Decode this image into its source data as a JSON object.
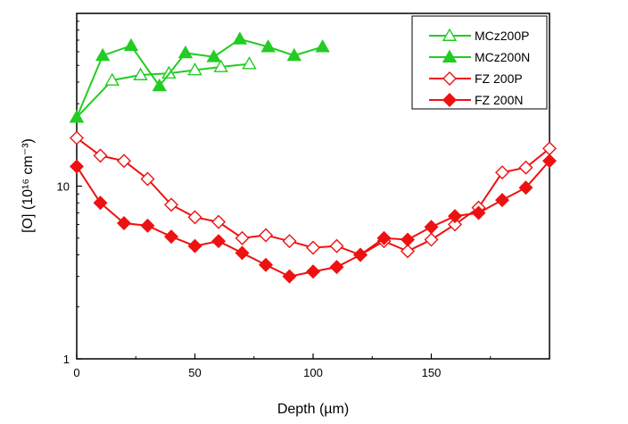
{
  "chart_data": {
    "type": "line",
    "title": "",
    "xlabel": "Depth (µm)",
    "ylabel": "[O] (10¹⁶ cm⁻³)",
    "yscale": "log",
    "xlim": [
      0,
      200
    ],
    "ylim": [
      1,
      100
    ],
    "x_ticks": [
      0,
      50,
      100,
      150
    ],
    "y_ticks": [
      1,
      10
    ],
    "legend_position": "top-right",
    "series": [
      {
        "name": "MCz200P",
        "color": "#22cc22",
        "marker": "triangle-open",
        "x": [
          0,
          15,
          27,
          39,
          50,
          61,
          73
        ],
        "y": [
          25,
          41,
          44,
          45,
          47,
          49,
          51
        ]
      },
      {
        "name": "MCz200N",
        "color": "#22cc22",
        "marker": "triangle-filled",
        "x": [
          0,
          11,
          23,
          35,
          46,
          58,
          69,
          81,
          92,
          104
        ],
        "y": [
          25,
          57,
          65,
          38,
          59,
          56,
          71,
          64,
          57,
          64
        ]
      },
      {
        "name": "FZ  200P",
        "color": "#ee1111",
        "marker": "diamond-open",
        "x": [
          0,
          10,
          20,
          30,
          40,
          50,
          60,
          70,
          80,
          90,
          100,
          110,
          120,
          130,
          140,
          150,
          160,
          170,
          180,
          190,
          200
        ],
        "y": [
          19,
          15,
          14,
          11,
          7.8,
          6.6,
          6.2,
          5,
          5.2,
          4.8,
          4.4,
          4.5,
          4,
          4.8,
          4.2,
          4.9,
          6,
          7.5,
          12,
          12.8,
          16.5
        ]
      },
      {
        "name": "FZ  200N",
        "color": "#ee1111",
        "marker": "diamond-filled",
        "x": [
          0,
          10,
          20,
          30,
          40,
          50,
          60,
          70,
          80,
          90,
          100,
          110,
          120,
          130,
          140,
          150,
          160,
          170,
          180,
          190,
          200
        ],
        "y": [
          13,
          8,
          6.1,
          5.9,
          5.1,
          4.5,
          4.8,
          4.1,
          3.5,
          3,
          3.2,
          3.4,
          4,
          5,
          4.9,
          5.8,
          6.7,
          7,
          8.3,
          9.8,
          14
        ]
      }
    ]
  }
}
